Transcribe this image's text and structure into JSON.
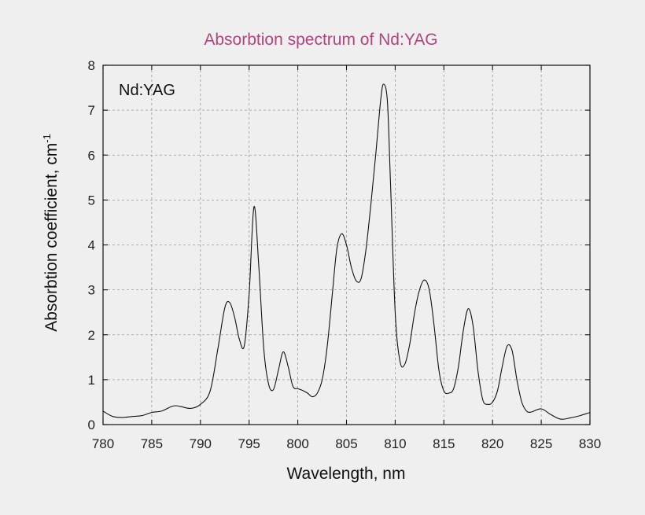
{
  "chart_data": {
    "type": "line",
    "title": "Absorbtion spectrum of Nd:YAG",
    "annotation": "Nd:YAG",
    "xlabel": "Wavelength, nm",
    "ylabel_main": "Absorbtion coefficient, cm",
    "ylabel_superscript": "-1",
    "xlim": [
      780,
      830
    ],
    "ylim": [
      0,
      8
    ],
    "xticks": [
      780,
      785,
      790,
      795,
      800,
      805,
      810,
      815,
      820,
      825,
      830
    ],
    "yticks": [
      0,
      1,
      2,
      3,
      4,
      5,
      6,
      7,
      8
    ],
    "grid": true,
    "series": [
      {
        "color": "#111111",
        "x": [
          780,
          781,
          782,
          783,
          784,
          785,
          786,
          787,
          787.5,
          788,
          789,
          790,
          791,
          791.8,
          792.5,
          793,
          793.5,
          794,
          794.5,
          795,
          795.5,
          796,
          796.5,
          797,
          797.5,
          798,
          798.5,
          799,
          799.5,
          800,
          800.5,
          801,
          801.5,
          802,
          802.5,
          803,
          803.5,
          804,
          804.5,
          805,
          805.5,
          806,
          806.5,
          807,
          807.5,
          808,
          808.5,
          808.8,
          809.2,
          809.5,
          810,
          810.5,
          811,
          811.5,
          812,
          812.5,
          813,
          813.5,
          814,
          814.5,
          815,
          815.5,
          816,
          816.5,
          817,
          817.5,
          818,
          818.5,
          819,
          819.5,
          820,
          820.5,
          821,
          821.5,
          822,
          822.5,
          823,
          823.5,
          824,
          825,
          826,
          827,
          828,
          829,
          830
        ],
        "y": [
          0.3,
          0.18,
          0.16,
          0.18,
          0.2,
          0.27,
          0.3,
          0.4,
          0.42,
          0.4,
          0.36,
          0.45,
          0.75,
          1.7,
          2.6,
          2.72,
          2.4,
          1.9,
          1.75,
          2.9,
          4.85,
          3.5,
          1.7,
          0.9,
          0.78,
          1.2,
          1.62,
          1.3,
          0.85,
          0.8,
          0.76,
          0.7,
          0.62,
          0.7,
          1.0,
          1.7,
          2.8,
          3.9,
          4.25,
          4.0,
          3.5,
          3.2,
          3.25,
          3.9,
          4.9,
          6.0,
          7.2,
          7.58,
          7.2,
          5.5,
          2.5,
          1.4,
          1.35,
          1.8,
          2.5,
          3.0,
          3.22,
          3.0,
          2.2,
          1.2,
          0.75,
          0.7,
          0.8,
          1.3,
          2.1,
          2.58,
          2.2,
          1.2,
          0.55,
          0.45,
          0.5,
          0.75,
          1.3,
          1.75,
          1.65,
          1.0,
          0.5,
          0.3,
          0.28,
          0.35,
          0.22,
          0.12,
          0.15,
          0.2,
          0.27
        ]
      }
    ]
  }
}
